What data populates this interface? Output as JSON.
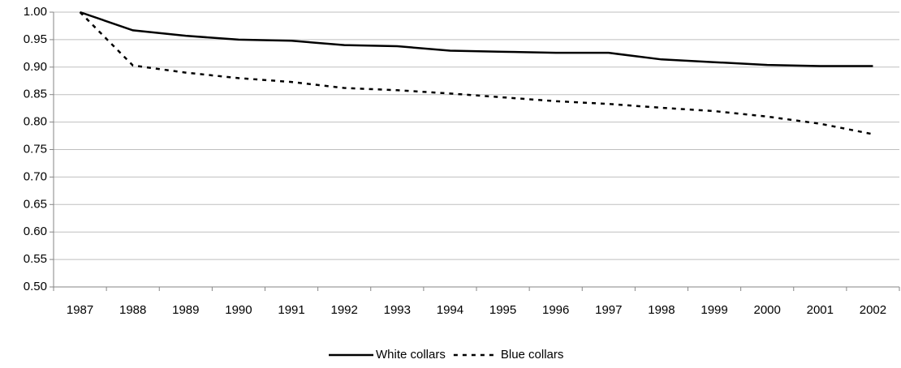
{
  "chart_data": {
    "type": "line",
    "categories": [
      "1987",
      "1988",
      "1989",
      "1990",
      "1991",
      "1992",
      "1993",
      "1994",
      "1995",
      "1996",
      "1997",
      "1998",
      "1999",
      "2000",
      "2001",
      "2002"
    ],
    "series": [
      {
        "name": "White collars",
        "color": "#000000",
        "dash": "solid",
        "values": [
          1.0,
          0.967,
          0.957,
          0.95,
          0.948,
          0.94,
          0.938,
          0.93,
          0.928,
          0.926,
          0.926,
          0.914,
          0.909,
          0.904,
          0.902,
          0.902
        ]
      },
      {
        "name": "Blue collars",
        "color": "#000000",
        "dash": "dashed",
        "values": [
          1.0,
          0.903,
          0.89,
          0.88,
          0.873,
          0.862,
          0.858,
          0.852,
          0.845,
          0.838,
          0.833,
          0.826,
          0.82,
          0.81,
          0.797,
          0.778
        ]
      }
    ],
    "ylim": [
      0.5,
      1.0
    ],
    "yticks": [
      {
        "value": 0.5,
        "label": "0.50"
      },
      0.55,
      {
        "value": 0.6,
        "label": "0.60"
      },
      0.65,
      {
        "value": 0.7,
        "label": "0.70"
      },
      0.75,
      {
        "value": 0.8,
        "label": "0.80"
      },
      0.85,
      {
        "value": 0.9,
        "label": "0.90"
      },
      0.95,
      {
        "value": 1.0,
        "label": "1.00"
      }
    ],
    "grid": true,
    "legend": "bottom"
  }
}
